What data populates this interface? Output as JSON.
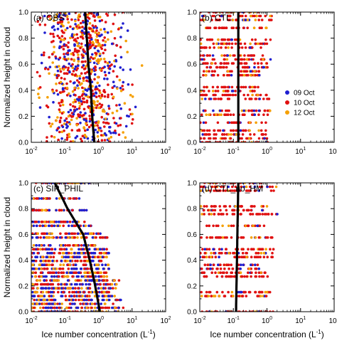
{
  "figure": {
    "ylabel": "Normalized height in cloud",
    "xlabel_prefix": "Ice number concentration (L",
    "xlabel_sup": "-1",
    "xlabel_suffix": ")",
    "legend": [
      {
        "label": "09 Oct",
        "color": "#1f1fd0"
      },
      {
        "label": "10 Oct",
        "color": "#e01010"
      },
      {
        "label": "12 Oct",
        "color": "#f5a000"
      }
    ],
    "mean_line_color": "#000000",
    "x_ticks": [
      {
        "base": "10",
        "exp": "-2"
      },
      {
        "base": "10",
        "exp": "-1"
      },
      {
        "base": "10",
        "exp": "0"
      },
      {
        "base": "10",
        "exp": "1"
      },
      {
        "base": "10",
        "exp": "2"
      }
    ],
    "y_ticks": [
      "0.0",
      "0.2",
      "0.4",
      "0.6",
      "0.8",
      "1.0"
    ]
  },
  "chart_data": [
    {
      "type": "scatter",
      "title": "(a) OBS",
      "xscale": "log",
      "xlim": [
        0.01,
        100
      ],
      "ylim": [
        0,
        1
      ],
      "mean_profile": {
        "y": [
          0.0,
          0.2,
          0.4,
          0.6,
          0.8,
          1.0
        ],
        "x": [
          0.75,
          0.65,
          0.6,
          0.5,
          0.45,
          0.4
        ]
      },
      "points_shown": "scattered individual observations, log10 x between -1.9 and 1.5",
      "legend": false
    },
    {
      "type": "scatter",
      "title": "(b) CTL",
      "xscale": "log",
      "xlim": [
        0.01,
        100
      ],
      "ylim": [
        0,
        1
      ],
      "mean_profile": {
        "y": [
          0.0,
          1.0
        ],
        "x": [
          0.14,
          0.14
        ]
      },
      "points_shown": "horizontal rows of model values at discrete heights, log10 x between -2 and 0.2",
      "legend": true
    },
    {
      "type": "scatter",
      "title": "(c) SIP_PHIL",
      "xscale": "log",
      "xlim": [
        0.01,
        100
      ],
      "ylim": [
        0,
        1
      ],
      "mean_profile": {
        "y": [
          0.0,
          0.2,
          0.4,
          0.6,
          0.8,
          1.0
        ],
        "x": [
          1.1,
          0.8,
          0.55,
          0.35,
          0.12,
          0.05
        ]
      },
      "points_shown": "horizontal rows of model values at discrete heights, log10 x between -2 and 0.9",
      "legend": false
    },
    {
      "type": "scatter",
      "title": "(d) CTL_no_HM",
      "xscale": "log",
      "xlim": [
        0.01,
        100
      ],
      "ylim": [
        0,
        1
      ],
      "mean_profile": {
        "y": [
          0.0,
          1.0
        ],
        "x": [
          0.12,
          0.14
        ]
      },
      "points_shown": "horizontal rows of model values at discrete heights, log10 x between -2 and 0.4",
      "legend": false
    }
  ]
}
